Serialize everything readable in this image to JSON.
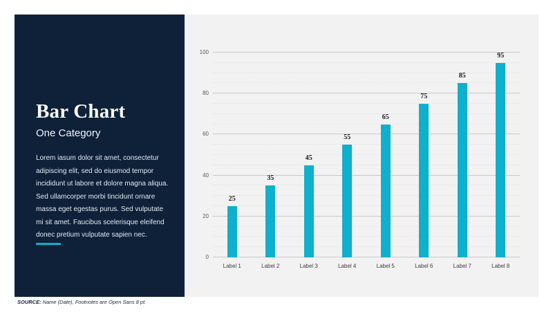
{
  "sidebar": {
    "title": "Bar Chart",
    "subtitle": "One Category",
    "body": "Lorem iasum dolor sit amet, consectetur adipiscing elit, sed do eiusmod tempor incididunt ut labore et dolore magna aliqua. Sed ullamcorper morbi tincidunt ornare massa eget egestas purus. Sed vulputate mi sit amet. Faucibus scelerisque eleifend donec pretium vulputate sapien nec."
  },
  "footer": {
    "source_label": "SOURCE:",
    "source_text": "Name (Date), Footnotes are Open Sans 8 pt."
  },
  "colors": {
    "sidebar_navy": "#0E2139",
    "bar_cyan": "#0FB0CB",
    "panel_gray": "#F2F2F2",
    "grid_major": "#C9C9C9",
    "grid_minor": "#E2E2E2"
  },
  "chart_data": {
    "type": "bar",
    "categories": [
      "Label 1",
      "Label 2",
      "Label 3",
      "Label 4",
      "Label 5",
      "Label 6",
      "Label 7",
      "Label 8"
    ],
    "values": [
      25,
      35,
      45,
      55,
      65,
      75,
      85,
      95
    ],
    "title": "",
    "xlabel": "",
    "ylabel": "",
    "ylim": [
      0,
      100
    ],
    "ytick_step": 20,
    "minor_grid_step": 5,
    "grid": true,
    "legend": false,
    "bar_color": "#0FB0CB",
    "value_labels_shown": true
  }
}
